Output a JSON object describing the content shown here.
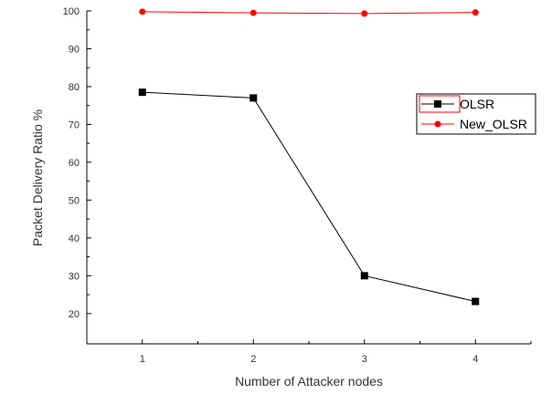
{
  "chart_data": {
    "type": "line",
    "x": [
      1,
      2,
      3,
      4
    ],
    "xlabel": "Number of Attacker nodes",
    "ylabel": "Packet Delivery Ratio %",
    "xlim": [
      0.5,
      4.5
    ],
    "ylim": [
      12,
      100
    ],
    "xticks": [
      1,
      2,
      3,
      4
    ],
    "yticks": [
      20,
      30,
      40,
      50,
      60,
      70,
      80,
      90,
      100
    ],
    "grid": false,
    "legend": {
      "position": "right",
      "entries": [
        "OLSR",
        "New_OLSR"
      ]
    },
    "series": [
      {
        "name": "OLSR",
        "values": [
          78.5,
          77.0,
          30.0,
          23.2
        ],
        "line_color": "#000000",
        "marker": "square",
        "marker_color": "#000000"
      },
      {
        "name": "New_OLSR",
        "values": [
          99.8,
          99.5,
          99.3,
          99.6
        ],
        "line_color": "#ff0000",
        "marker": "circle",
        "marker_color": "#ff0000"
      }
    ]
  }
}
